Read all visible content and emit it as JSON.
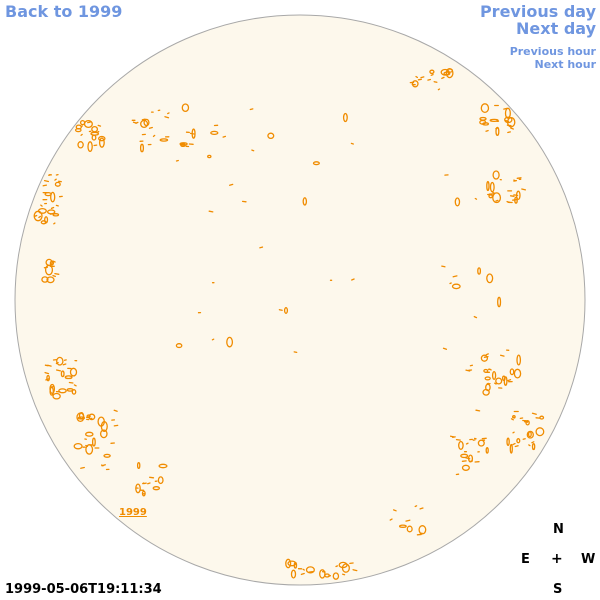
{
  "nav": {
    "back_label": "Back to 1999",
    "prev_day_label": "Previous day",
    "next_day_label": "Next day",
    "prev_hour_label": "Previous hour",
    "next_hour_label": "Next hour"
  },
  "sun": {
    "year_marker": "1999",
    "disk_color": "#fdf8ec",
    "contour_color": "#f08c00"
  },
  "compass": {
    "north": "N",
    "east": "E",
    "center": "+",
    "west": "W",
    "south": "S"
  },
  "timestamp": "1999-05-06T19:11:34",
  "colors": {
    "link": "#6f96e0",
    "text": "#000000"
  }
}
